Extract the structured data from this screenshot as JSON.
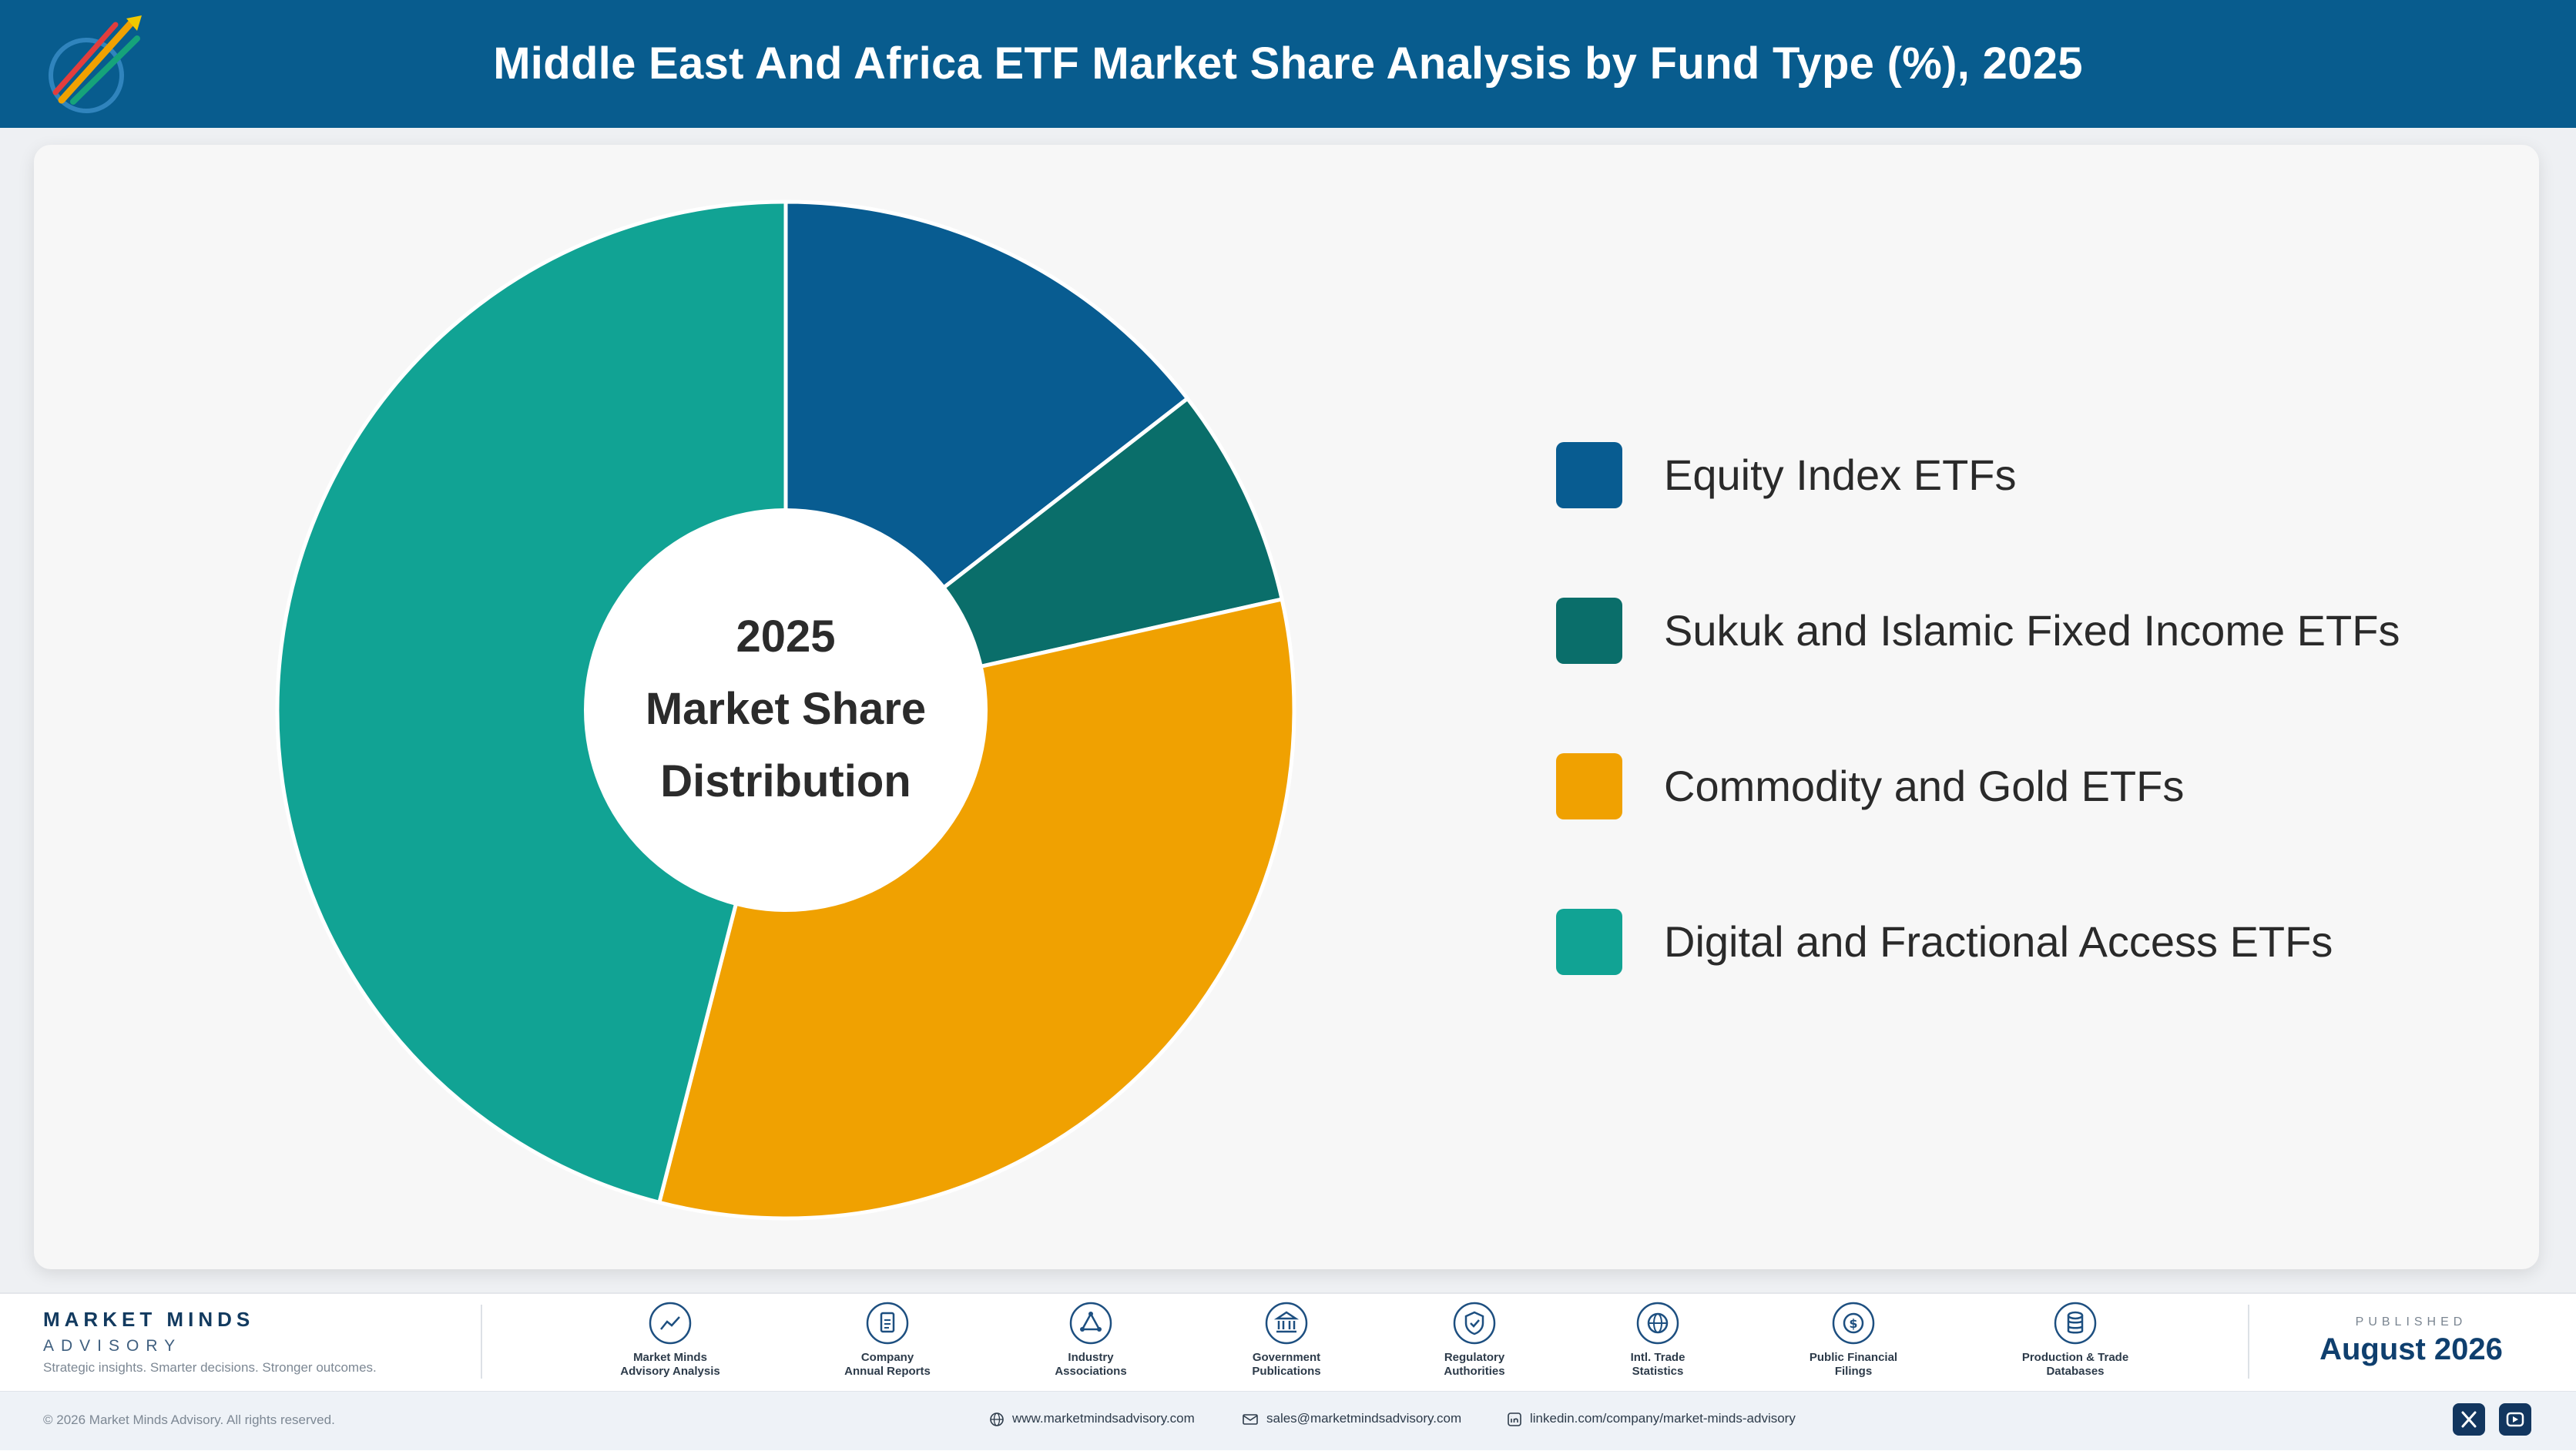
{
  "header": {
    "title": "Middle East And Africa ETF Market Share Analysis by Fund Type (%), 2025"
  },
  "chart_data": {
    "type": "pie",
    "title": "Middle East And Africa ETF Market Share Analysis by Fund Type (%), 2025",
    "center_label": [
      "2025",
      "Market Share",
      "Distribution"
    ],
    "categories": [
      "Equity Index ETFs",
      "Sukuk and Islamic Fixed Income ETFs",
      "Commodity and Gold ETFs",
      "Digital and Fractional Access ETFs"
    ],
    "values": [
      14.5,
      7.0,
      32.5,
      46.0
    ],
    "colors": [
      "#085c91",
      "#0a6e6a",
      "#f0a101",
      "#11a394"
    ],
    "legend_position": "right"
  },
  "footer": {
    "brand_name": "MARKET MINDS",
    "brand_sub": "ADVISORY",
    "tagline": "Strategic insights. Smarter decisions. Stronger outcomes.",
    "sources": [
      {
        "line1": "Market Minds",
        "line2": "Advisory Analysis",
        "icon": "trend-chart-icon"
      },
      {
        "line1": "Company",
        "line2": "Annual Reports",
        "icon": "document-icon"
      },
      {
        "line1": "Industry",
        "line2": "Associations",
        "icon": "network-icon"
      },
      {
        "line1": "Government",
        "line2": "Publications",
        "icon": "government-building-icon"
      },
      {
        "line1": "Regulatory",
        "line2": "Authorities",
        "icon": "shield-check-icon"
      },
      {
        "line1": "Intl. Trade",
        "line2": "Statistics",
        "icon": "globe-icon"
      },
      {
        "line1": "Public Financial",
        "line2": "Filings",
        "icon": "dollar-coin-icon"
      },
      {
        "line1": "Production & Trade",
        "line2": "Databases",
        "icon": "database-icon"
      }
    ],
    "published_label": "PUBLISHED",
    "published_date": "August 2026",
    "copyright": "© 2026 Market Minds Advisory. All rights reserved.",
    "website": "www.marketmindsadvisory.com",
    "email": "sales@marketmindsadvisory.com",
    "linkedin": "linkedin.com/company/market-minds-advisory"
  }
}
